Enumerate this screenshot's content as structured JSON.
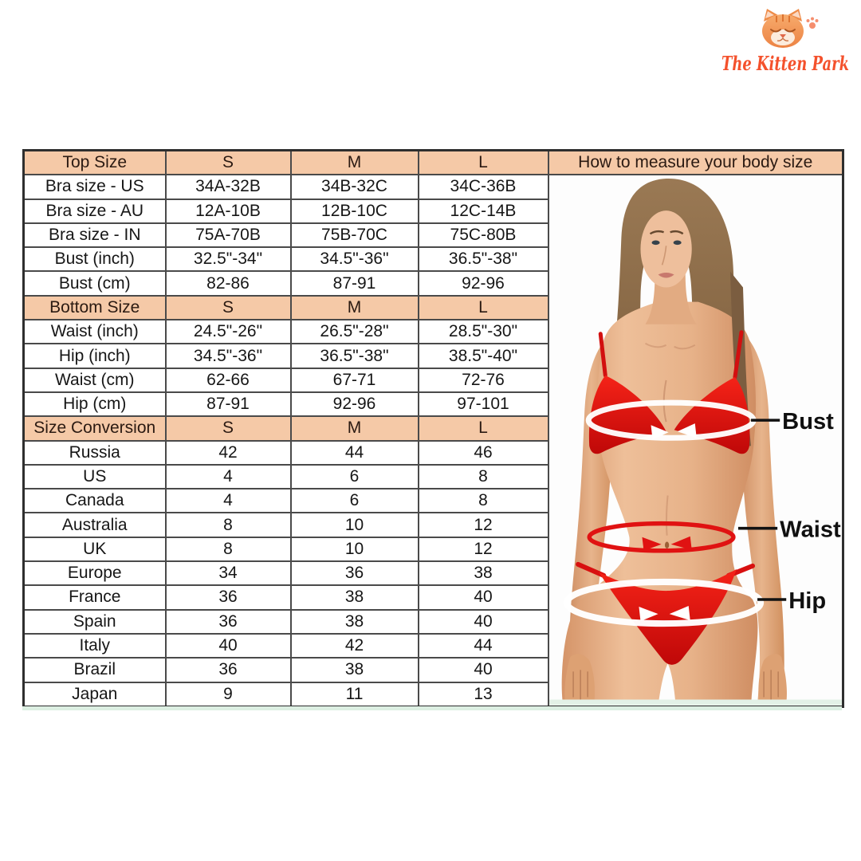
{
  "logo": {
    "brand": "The Kitten Park"
  },
  "table": {
    "measure_header": "How to measure your body size",
    "size_columns": [
      "S",
      "M",
      "L"
    ]
  },
  "figure": {
    "labels": {
      "bust": "Bust",
      "waist": "Waist",
      "hip": "Hip"
    }
  },
  "colors": {
    "header_peach": "#f5c9a7",
    "table_border": "#4a4a4a",
    "bikini_red": "#e01212",
    "tape_white": "#ffffff",
    "logo_coral": "#f4512c"
  },
  "chart_data": {
    "type": "table",
    "title": "Swimwear size chart",
    "columns": [
      "",
      "S",
      "M",
      "L"
    ],
    "rows": [
      {
        "type": "header",
        "label": "Top Size",
        "values": [
          "S",
          "M",
          "L"
        ]
      },
      {
        "type": "data",
        "label": "Bra size - US",
        "values": [
          "34A-32B",
          "34B-32C",
          "34C-36B"
        ]
      },
      {
        "type": "data",
        "label": "Bra size - AU",
        "values": [
          "12A-10B",
          "12B-10C",
          "12C-14B"
        ]
      },
      {
        "type": "data",
        "label": "Bra size - IN",
        "values": [
          "75A-70B",
          "75B-70C",
          "75C-80B"
        ]
      },
      {
        "type": "data",
        "label": "Bust (inch)",
        "values": [
          "32.5\"-34\"",
          "34.5\"-36\"",
          "36.5\"-38\""
        ]
      },
      {
        "type": "data",
        "label": "Bust (cm)",
        "values": [
          "82-86",
          "87-91",
          "92-96"
        ]
      },
      {
        "type": "header",
        "label": "Bottom Size",
        "values": [
          "S",
          "M",
          "L"
        ]
      },
      {
        "type": "data",
        "label": "Waist (inch)",
        "values": [
          "24.5\"-26\"",
          "26.5\"-28\"",
          "28.5\"-30\""
        ]
      },
      {
        "type": "data",
        "label": "Hip (inch)",
        "values": [
          "34.5\"-36\"",
          "36.5\"-38\"",
          "38.5\"-40\""
        ]
      },
      {
        "type": "data",
        "label": "Waist (cm)",
        "values": [
          "62-66",
          "67-71",
          "72-76"
        ]
      },
      {
        "type": "data",
        "label": "Hip (cm)",
        "values": [
          "87-91",
          "92-96",
          "97-101"
        ]
      },
      {
        "type": "header",
        "label": "Size Conversion",
        "values": [
          "S",
          "M",
          "L"
        ]
      },
      {
        "type": "data",
        "label": "Russia",
        "values": [
          "42",
          "44",
          "46"
        ]
      },
      {
        "type": "data",
        "label": "US",
        "values": [
          "4",
          "6",
          "8"
        ]
      },
      {
        "type": "data",
        "label": "Canada",
        "values": [
          "4",
          "6",
          "8"
        ]
      },
      {
        "type": "data",
        "label": "Australia",
        "values": [
          "8",
          "10",
          "12"
        ]
      },
      {
        "type": "data",
        "label": "UK",
        "values": [
          "8",
          "10",
          "12"
        ]
      },
      {
        "type": "data",
        "label": "Europe",
        "values": [
          "34",
          "36",
          "38"
        ]
      },
      {
        "type": "data",
        "label": "France",
        "values": [
          "36",
          "38",
          "40"
        ]
      },
      {
        "type": "data",
        "label": "Spain",
        "values": [
          "36",
          "38",
          "40"
        ]
      },
      {
        "type": "data",
        "label": "Italy",
        "values": [
          "40",
          "42",
          "44"
        ]
      },
      {
        "type": "data",
        "label": "Brazil",
        "values": [
          "36",
          "38",
          "40"
        ]
      },
      {
        "type": "data",
        "label": "Japan",
        "values": [
          "9",
          "11",
          "13"
        ]
      }
    ]
  }
}
